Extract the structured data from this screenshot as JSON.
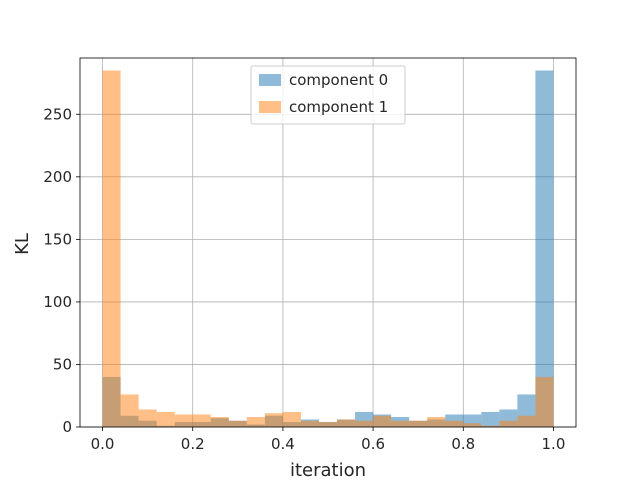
{
  "chart_data": {
    "type": "bar",
    "title": "",
    "xlabel": "iteration",
    "ylabel": "KL",
    "xlim": [
      -0.05,
      1.05
    ],
    "ylim": [
      0,
      295
    ],
    "xticks": [
      0.0,
      0.2,
      0.4,
      0.6,
      0.8,
      1.0
    ],
    "xtick_labels": [
      "0.0",
      "0.2",
      "0.4",
      "0.6",
      "0.8",
      "1.0"
    ],
    "yticks": [
      0,
      50,
      100,
      150,
      200,
      250
    ],
    "ytick_labels": [
      "0",
      "50",
      "100",
      "150",
      "200",
      "250"
    ],
    "grid": true,
    "legend_position": "top-center",
    "bin_edges": [
      0.0,
      0.04,
      0.08,
      0.12,
      0.16,
      0.2,
      0.24,
      0.28,
      0.32,
      0.36,
      0.4,
      0.44,
      0.48,
      0.52,
      0.56,
      0.6,
      0.64,
      0.68,
      0.72,
      0.76,
      0.8,
      0.84,
      0.88,
      0.92,
      0.96,
      1.0
    ],
    "series": [
      {
        "name": "component 0",
        "color": "#1f77b4",
        "alpha": 0.5,
        "values": [
          40,
          9,
          5,
          1,
          4,
          4,
          7,
          5,
          2,
          9,
          4,
          6,
          4,
          6,
          12,
          10,
          8,
          5,
          6,
          10,
          10,
          12,
          14,
          26,
          285
        ]
      },
      {
        "name": "component 1",
        "color": "#ff7f0e",
        "alpha": 0.5,
        "values": [
          285,
          26,
          14,
          12,
          10,
          10,
          8,
          5,
          8,
          11,
          12,
          5,
          4,
          6,
          5,
          9,
          5,
          5,
          8,
          5,
          3,
          1,
          5,
          9,
          40
        ]
      }
    ]
  }
}
